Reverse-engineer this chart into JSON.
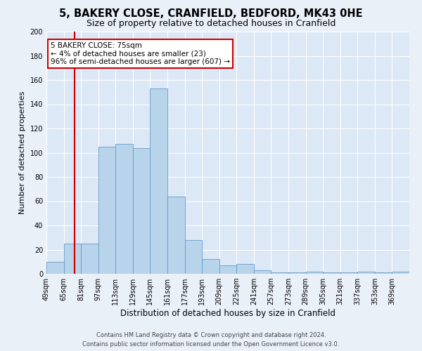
{
  "title": "5, BAKERY CLOSE, CRANFIELD, BEDFORD, MK43 0HE",
  "subtitle": "Size of property relative to detached houses in Cranfield",
  "xlabel": "Distribution of detached houses by size in Cranfield",
  "ylabel": "Number of detached properties",
  "bin_labels": [
    "49sqm",
    "65sqm",
    "81sqm",
    "97sqm",
    "113sqm",
    "129sqm",
    "145sqm",
    "161sqm",
    "177sqm",
    "193sqm",
    "209sqm",
    "225sqm",
    "241sqm",
    "257sqm",
    "273sqm",
    "289sqm",
    "305sqm",
    "321sqm",
    "337sqm",
    "353sqm",
    "369sqm"
  ],
  "bar_values": [
    10,
    25,
    25,
    105,
    107,
    104,
    153,
    64,
    28,
    12,
    7,
    8,
    3,
    1,
    1,
    2,
    1,
    1,
    2,
    1,
    2
  ],
  "bin_edges": [
    49,
    65,
    81,
    97,
    113,
    129,
    145,
    161,
    177,
    193,
    209,
    225,
    241,
    257,
    273,
    289,
    305,
    321,
    337,
    353,
    369,
    385
  ],
  "bar_color": "#b8d4ea",
  "bar_edge_color": "#6699cc",
  "background_color": "#eaf0f8",
  "plot_bg_color": "#dce8f5",
  "grid_color": "#c8d8e8",
  "red_line_x": 75,
  "annotation_text_line1": "5 BAKERY CLOSE: 75sqm",
  "annotation_text_line2": "← 4% of detached houses are smaller (23)",
  "annotation_text_line3": "96% of semi-detached houses are larger (607) →",
  "annotation_box_color": "#ffffff",
  "annotation_border_color": "#cc0000",
  "red_line_color": "#cc0000",
  "ylim": [
    0,
    200
  ],
  "yticks": [
    0,
    20,
    40,
    60,
    80,
    100,
    120,
    140,
    160,
    180,
    200
  ],
  "footer_line1": "Contains HM Land Registry data © Crown copyright and database right 2024.",
  "footer_line2": "Contains public sector information licensed under the Open Government Licence v3.0.",
  "title_fontsize": 10.5,
  "subtitle_fontsize": 9,
  "xlabel_fontsize": 8.5,
  "ylabel_fontsize": 8,
  "tick_fontsize": 7,
  "footer_fontsize": 6,
  "annotation_fontsize": 7.5
}
